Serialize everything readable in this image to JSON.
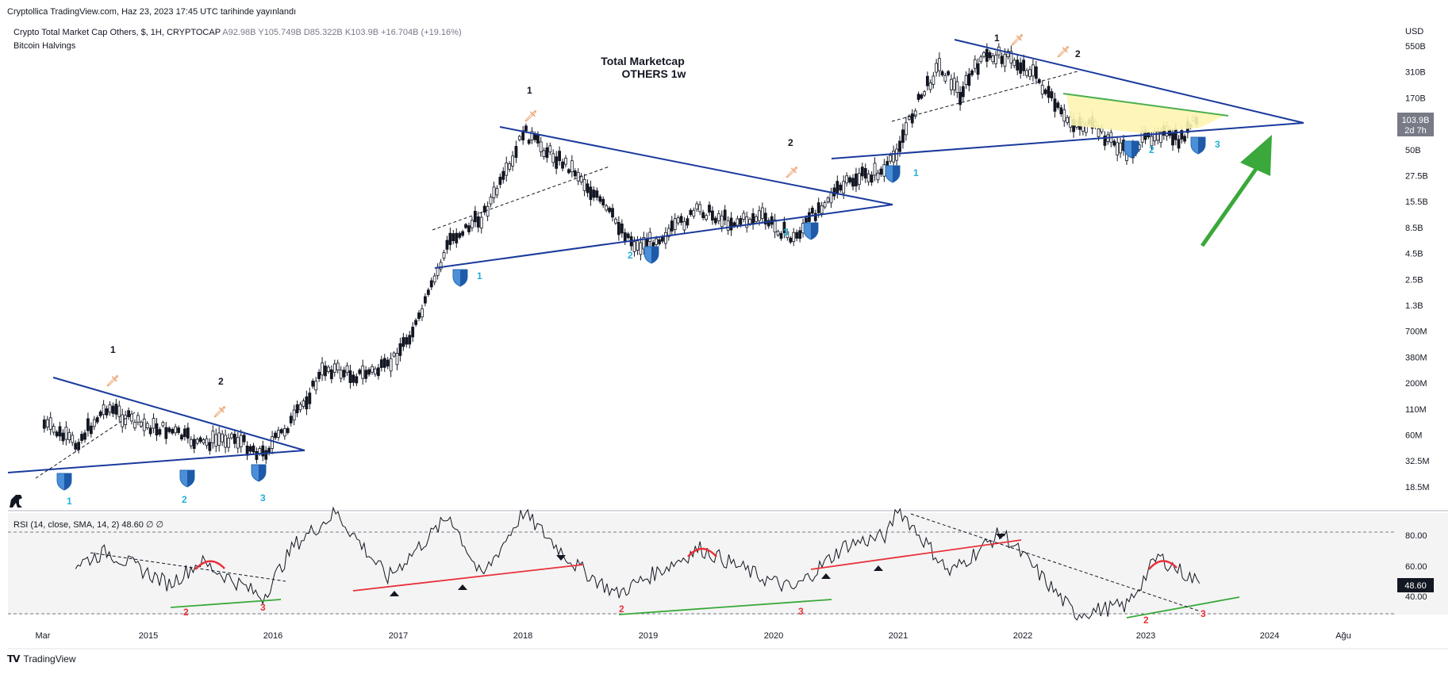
{
  "header": {
    "published": "Cryptollica TradingView.com, Haz 23, 2023 17:45 UTC tarihinde yayınlandı",
    "symbol": "Crypto Total Market Cap Others, $, 1H, CRYPTOCAP",
    "ohlc": "A92.98B Y105.749B D85.322B K103.9B +16.704B (+19.16%)",
    "indicator": "Bitcoin Halvings",
    "currency": "USD"
  },
  "title": {
    "line1": "Total Marketcap",
    "line2": "OTHERS 1w"
  },
  "price_badge": {
    "value": "103.9B",
    "countdown": "2d 7h",
    "rsi": "48.60"
  },
  "rsi_panel": {
    "label": "RSI (14, close, SMA, 14, 2)  48.60  ∅  ∅",
    "levels": [
      "80.00",
      "60.00",
      "40.00"
    ]
  },
  "footer": {
    "brand": "TradingView"
  },
  "colors": {
    "trendline": "#1a3a9c",
    "bull_arrow": "#3aa83a",
    "rsi_red": "#e8313a",
    "rsi_green": "#3aa83a",
    "fill_yellow": "#fdf5b0",
    "label_cyan": "#22b0d8",
    "label_red": "#e8313a"
  },
  "chart_data": {
    "type": "line",
    "scale": "log",
    "title": "Total Marketcap OTHERS 1w",
    "y_ticks": [
      "550B",
      "310B",
      "170B",
      "100B",
      "50B",
      "27.5B",
      "15.5B",
      "8.5B",
      "4.5B",
      "2.5B",
      "1.3B",
      "700M",
      "380M",
      "200M",
      "110M",
      "60M",
      "32.5M",
      "18.5M"
    ],
    "x_ticks": [
      "Mar",
      "2015",
      "2016",
      "2017",
      "2018",
      "2019",
      "2020",
      "2021",
      "2022",
      "2023",
      "2024",
      "Ağu"
    ],
    "series": [
      {
        "x": [
          "2014-03",
          "2014-06",
          "2014-09",
          "2014-12",
          "2015-03",
          "2015-06",
          "2015-09",
          "2015-12",
          "2016-03",
          "2016-06",
          "2016-09",
          "2016-12",
          "2017-03",
          "2017-06",
          "2017-09",
          "2017-12",
          "2018-01",
          "2018-03",
          "2018-06",
          "2018-09",
          "2018-12",
          "2019-03",
          "2019-06",
          "2019-09",
          "2019-12",
          "2020-03",
          "2020-06",
          "2020-09",
          "2020-12",
          "2021-03",
          "2021-05",
          "2021-07",
          "2021-09",
          "2021-11",
          "2022-02",
          "2022-05",
          "2022-08",
          "2022-11",
          "2023-02",
          "2023-04",
          "2023-06"
        ],
        "y": [
          0.08,
          0.05,
          0.12,
          0.08,
          0.07,
          0.05,
          0.06,
          0.04,
          0.09,
          0.3,
          0.25,
          0.3,
          0.9,
          6,
          10,
          35,
          75,
          50,
          30,
          12,
          5,
          7,
          12,
          9,
          10,
          6,
          15,
          25,
          30,
          150,
          350,
          180,
          400,
          450,
          300,
          100,
          80,
          45,
          75,
          60,
          103.9
        ]
      }
    ],
    "rsi": {
      "x": [
        "2014-06",
        "2014-09",
        "2015-03",
        "2015-06",
        "2015-12",
        "2016-03",
        "2016-07",
        "2016-12",
        "2017-06",
        "2017-09",
        "2018-01",
        "2018-06",
        "2018-10",
        "2019-06",
        "2019-12",
        "2020-03",
        "2020-08",
        "2020-12",
        "2021-01",
        "2021-06",
        "2021-11",
        "2022-06",
        "2022-11",
        "2023-02",
        "2023-06"
      ],
      "y": [
        60,
        68,
        48,
        62,
        40,
        72,
        92,
        52,
        90,
        52,
        92,
        60,
        42,
        70,
        52,
        45,
        72,
        78,
        95,
        55,
        80,
        30,
        35,
        65,
        48.6
      ]
    }
  }
}
